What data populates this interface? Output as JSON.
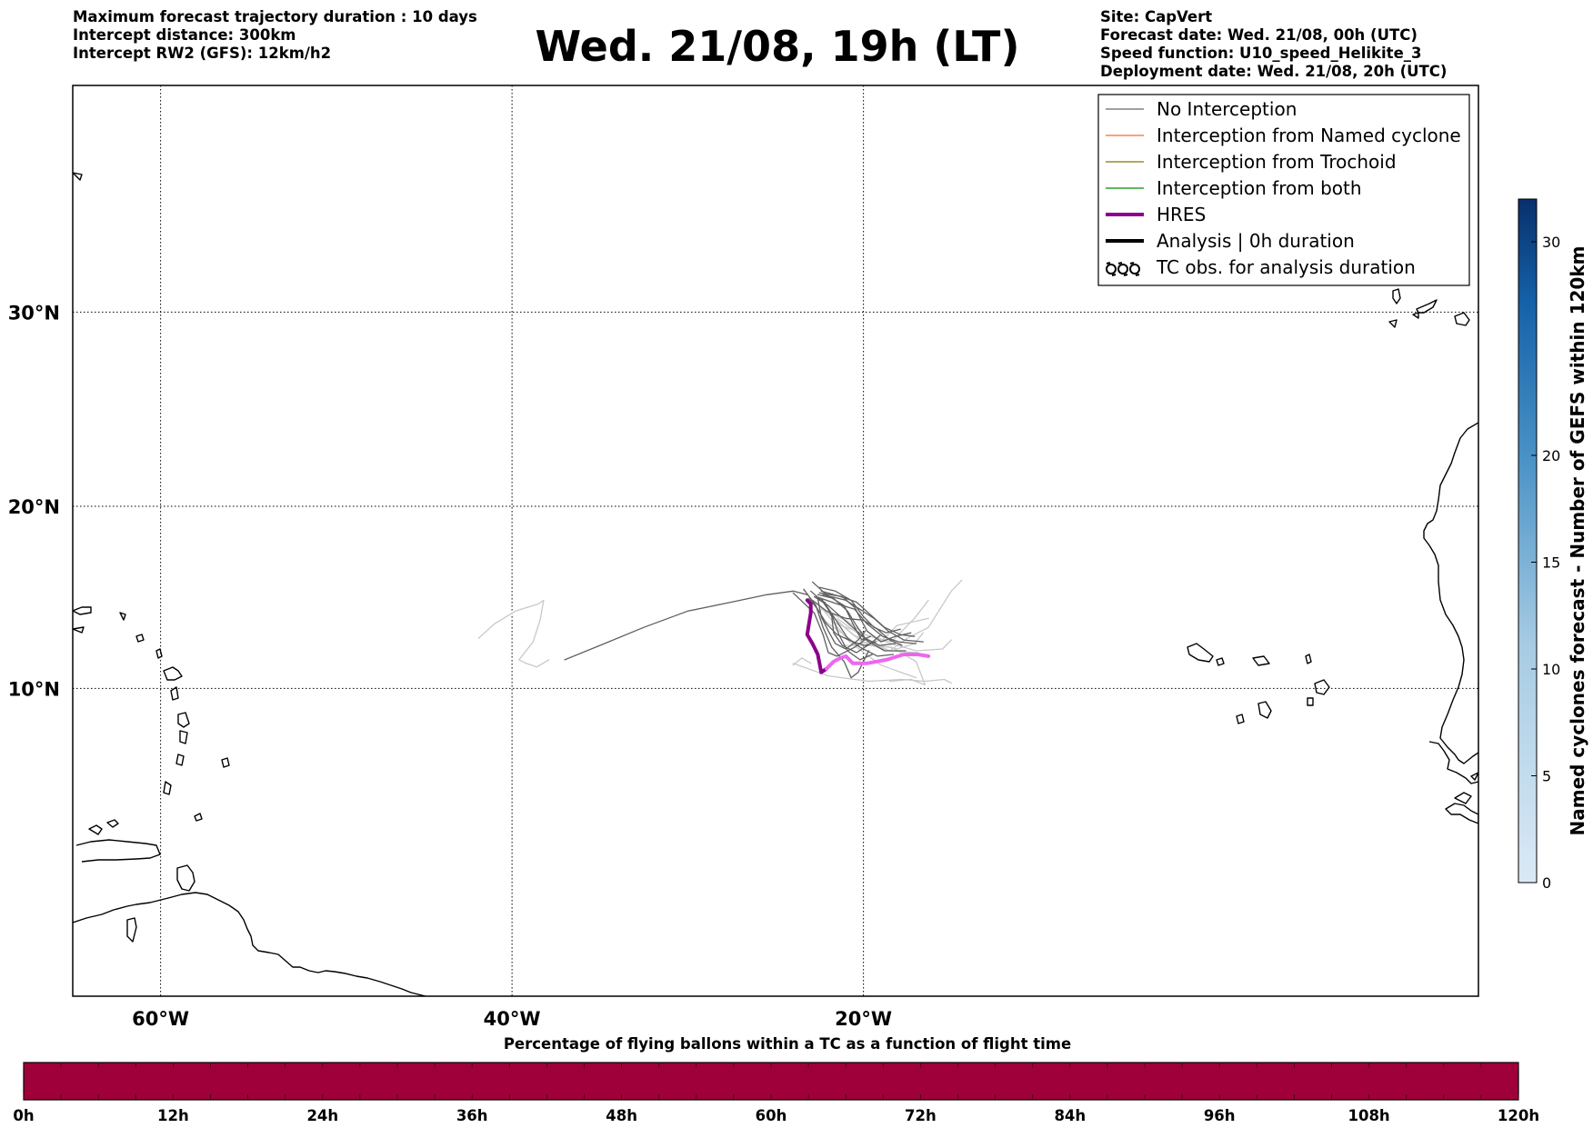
{
  "header": {
    "left_lines": [
      "Maximum forecast trajectory duration : 10 days",
      "Intercept distance: 300km",
      "Intercept RW2 (GFS):  12km/h2"
    ],
    "title": "Wed. 21/08, 19h (LT)",
    "right_lines": [
      "Site: CapVert",
      "Forecast date: Wed. 21/08, 00h (UTC)",
      "Speed function: U10_speed_Helikite_3",
      "Deployment date: Wed. 21/08, 20h (UTC)"
    ]
  },
  "map": {
    "lon_range": [
      -65,
      15
    ],
    "lat_range": [
      5.5,
      35
    ],
    "lon_ticks": [
      {
        "lon": -60,
        "label": "60°W"
      },
      {
        "lon": -40,
        "label": "40°W"
      },
      {
        "lon": -20,
        "label": "20°W"
      }
    ],
    "lat_ticks": [
      {
        "lat": 10,
        "label": "10°N"
      },
      {
        "lat": 20,
        "label": "20°N"
      },
      {
        "lat": 30,
        "label": "30°N"
      }
    ],
    "grid": true,
    "grid_style": "dotted"
  },
  "legend": {
    "placement": "top-right",
    "entries": [
      {
        "label": "No Interception",
        "color": "#808080",
        "style": "thin"
      },
      {
        "label": "Interception from Named cyclone",
        "color": "#ff7f50",
        "style": "thin"
      },
      {
        "label": "Interception from Trochoid",
        "color": "#9a8a30",
        "style": "thin"
      },
      {
        "label": "Interception from both",
        "color": "#2ca02c",
        "style": "thin"
      },
      {
        "label": "HRES",
        "color": "#8b008b",
        "style": "thick"
      },
      {
        "label": "Analysis | 0h duration",
        "color": "#000000",
        "style": "thick"
      },
      {
        "label": "TC obs. for analysis duration",
        "color": "#000000",
        "style": "cyclone-symbols"
      }
    ]
  },
  "trajectories": {
    "hres": {
      "color_early": "#8b008b",
      "color_late": "#ee66ee",
      "points": [
        [
          -23.2,
          14.9
        ],
        [
          -23.0,
          14.7
        ],
        [
          -23.0,
          14.2
        ],
        [
          -23.1,
          13.6
        ],
        [
          -23.2,
          13.0
        ],
        [
          -22.9,
          12.5
        ],
        [
          -22.6,
          11.9
        ],
        [
          -22.5,
          11.4
        ],
        [
          -22.4,
          10.9
        ],
        [
          -22.1,
          11.1
        ],
        [
          -21.7,
          11.5
        ],
        [
          -21.3,
          11.7
        ],
        [
          -21.0,
          11.8
        ],
        [
          -20.6,
          11.4
        ],
        [
          -19.8,
          11.4
        ],
        [
          -18.7,
          11.6
        ],
        [
          -17.7,
          11.9
        ],
        [
          -16.9,
          11.9
        ],
        [
          -16.3,
          11.8
        ]
      ]
    },
    "lines": [
      {
        "color": "#5f5f5f",
        "points": [
          [
            -37.0,
            11.6
          ],
          [
            -35.0,
            12.4
          ],
          [
            -32.5,
            13.4
          ],
          [
            -30.0,
            14.3
          ],
          [
            -27.5,
            14.8
          ],
          [
            -25.5,
            15.2
          ],
          [
            -24.0,
            15.4
          ],
          [
            -23.2,
            15.2
          ]
        ]
      },
      {
        "color": "#c8c8c8",
        "points": [
          [
            -41.9,
            12.8
          ],
          [
            -41.0,
            13.6
          ],
          [
            -39.8,
            14.3
          ],
          [
            -38.5,
            14.7
          ],
          [
            -38.2,
            14.9
          ],
          [
            -38.4,
            13.8
          ],
          [
            -38.8,
            12.6
          ],
          [
            -39.6,
            11.6
          ],
          [
            -39.2,
            11.4
          ],
          [
            -38.6,
            11.2
          ],
          [
            -37.9,
            11.6
          ]
        ]
      },
      {
        "color": "#c8c8c8",
        "points": [
          [
            -24.0,
            11.3
          ],
          [
            -23.5,
            11.7
          ],
          [
            -23.0,
            11.4
          ]
        ]
      },
      {
        "color": "#c8c8c8",
        "points": [
          [
            -22.4,
            14.5
          ],
          [
            -20.6,
            13.0
          ],
          [
            -18.5,
            12.1
          ],
          [
            -16.9,
            12.0
          ]
        ]
      },
      {
        "color": "#c8c8c8",
        "points": [
          [
            -22.4,
            14.5
          ],
          [
            -20.8,
            12.6
          ],
          [
            -19.0,
            11.3
          ],
          [
            -17.0,
            10.6
          ]
        ]
      },
      {
        "color": "#c8c8c8",
        "points": [
          [
            -22.4,
            13.9
          ],
          [
            -20.4,
            12.5
          ],
          [
            -18.9,
            12.7
          ],
          [
            -18.1,
            13.5
          ],
          [
            -16.3,
            13.9
          ]
        ]
      },
      {
        "color": "#c8c8c8",
        "points": [
          [
            -22.4,
            14.4
          ],
          [
            -21.0,
            13.8
          ],
          [
            -19.9,
            13.0
          ],
          [
            -18.4,
            12.6
          ],
          [
            -17.1,
            13.9
          ],
          [
            -16.3,
            14.9
          ]
        ]
      },
      {
        "color": "#c8c8c8",
        "points": [
          [
            -22.0,
            14.2
          ],
          [
            -20.1,
            12.6
          ],
          [
            -18.5,
            12.1
          ],
          [
            -17.5,
            12.8
          ],
          [
            -16.3,
            13.4
          ],
          [
            -15.0,
            15.4
          ],
          [
            -14.4,
            16.0
          ]
        ]
      },
      {
        "color": "#c8c8c8",
        "points": [
          [
            -21.8,
            13.7
          ],
          [
            -19.6,
            12.9
          ],
          [
            -18.4,
            12.5
          ],
          [
            -17.0,
            12.1
          ],
          [
            -15.5,
            12.2
          ],
          [
            -15.0,
            12.7
          ]
        ]
      },
      {
        "color": "#c8c8c8",
        "points": [
          [
            -21.5,
            13.9
          ],
          [
            -19.5,
            12.5
          ],
          [
            -18.1,
            12.2
          ],
          [
            -17.1,
            12.5
          ],
          [
            -16.6,
            13.1
          ]
        ]
      },
      {
        "color": "#c8c8c8",
        "points": [
          [
            -24.0,
            11.4
          ],
          [
            -22.0,
            10.7
          ],
          [
            -19.7,
            10.4
          ],
          [
            -17.8,
            10.5
          ],
          [
            -16.5,
            10.4
          ],
          [
            -15.4,
            10.5
          ],
          [
            -15.0,
            10.3
          ]
        ]
      },
      {
        "color": "#c8c8c8",
        "points": [
          [
            -21.2,
            12.4
          ],
          [
            -19.8,
            12.4
          ],
          [
            -18.4,
            12.3
          ],
          [
            -17.0,
            11.5
          ],
          [
            -16.5,
            10.2
          ],
          [
            -17.3,
            10.5
          ],
          [
            -18.5,
            10.4
          ]
        ]
      },
      {
        "color": "#5f5f5f",
        "points": [
          [
            -24.0,
            15.3
          ],
          [
            -22.8,
            14.2
          ],
          [
            -22.3,
            13.0
          ],
          [
            -22.0,
            12.0
          ],
          [
            -21.5,
            11.8
          ],
          [
            -20.5,
            12.3
          ],
          [
            -19.8,
            12.8
          ]
        ]
      },
      {
        "color": "#5f5f5f",
        "points": [
          [
            -23.4,
            15.5
          ],
          [
            -22.7,
            14.6
          ],
          [
            -22.3,
            13.4
          ],
          [
            -21.8,
            12.3
          ],
          [
            -21.1,
            11.5
          ],
          [
            -20.7,
            10.6
          ],
          [
            -20.3,
            10.9
          ],
          [
            -19.7,
            12.1
          ]
        ]
      },
      {
        "color": "#5f5f5f",
        "points": [
          [
            -22.9,
            15.9
          ],
          [
            -22.1,
            15.2
          ],
          [
            -21.1,
            14.6
          ],
          [
            -20.5,
            13.4
          ],
          [
            -20.1,
            12.7
          ],
          [
            -19.6,
            12.9
          ]
        ]
      },
      {
        "color": "#5f5f5f",
        "points": [
          [
            -22.7,
            15.1
          ],
          [
            -21.5,
            14.7
          ],
          [
            -20.5,
            14.4
          ],
          [
            -19.8,
            13.6
          ],
          [
            -18.9,
            12.9
          ],
          [
            -18.0,
            12.6
          ],
          [
            -17.0,
            12.5
          ]
        ]
      },
      {
        "color": "#5f5f5f",
        "points": [
          [
            -22.5,
            15.3
          ],
          [
            -21.2,
            15.1
          ],
          [
            -20.5,
            14.5
          ],
          [
            -19.8,
            13.2
          ],
          [
            -19.0,
            12.6
          ],
          [
            -18.2,
            12.9
          ],
          [
            -17.3,
            13.1
          ]
        ]
      },
      {
        "color": "#5f5f5f",
        "points": [
          [
            -22.4,
            15.0
          ],
          [
            -21.9,
            14.3
          ],
          [
            -21.3,
            13.4
          ],
          [
            -20.9,
            12.8
          ],
          [
            -20.2,
            12.3
          ],
          [
            -19.2,
            11.8
          ],
          [
            -18.3,
            11.9
          ]
        ]
      },
      {
        "color": "#5f5f5f",
        "points": [
          [
            -22.3,
            15.2
          ],
          [
            -21.0,
            14.9
          ],
          [
            -20.2,
            14.4
          ],
          [
            -19.4,
            13.9
          ],
          [
            -18.6,
            13.2
          ],
          [
            -17.7,
            12.7
          ],
          [
            -16.6,
            12.6
          ]
        ]
      },
      {
        "color": "#5f5f5f",
        "points": [
          [
            -22.6,
            15.0
          ],
          [
            -22.4,
            14.0
          ],
          [
            -22.0,
            13.2
          ],
          [
            -21.6,
            12.5
          ],
          [
            -21.0,
            12.2
          ],
          [
            -20.3,
            12.7
          ],
          [
            -19.9,
            13.2
          ]
        ]
      },
      {
        "color": "#5f5f5f",
        "points": [
          [
            -23.0,
            15.4
          ],
          [
            -22.3,
            14.8
          ],
          [
            -21.8,
            14.1
          ],
          [
            -21.4,
            13.0
          ],
          [
            -20.9,
            12.1
          ],
          [
            -20.2,
            11.6
          ],
          [
            -19.5,
            11.9
          ]
        ]
      },
      {
        "color": "#5f5f5f",
        "points": [
          [
            -22.5,
            15.6
          ],
          [
            -21.6,
            15.4
          ],
          [
            -20.7,
            14.9
          ],
          [
            -20.0,
            14.0
          ],
          [
            -19.4,
            13.4
          ],
          [
            -18.7,
            13.1
          ],
          [
            -17.9,
            13.3
          ]
        ]
      },
      {
        "color": "#5f5f5f",
        "points": [
          [
            -22.2,
            14.8
          ],
          [
            -21.8,
            14.0
          ],
          [
            -21.7,
            13.1
          ],
          [
            -21.2,
            12.4
          ],
          [
            -20.4,
            12.0
          ],
          [
            -19.6,
            12.5
          ],
          [
            -19.0,
            13.0
          ]
        ]
      },
      {
        "color": "#5f5f5f",
        "points": [
          [
            -22.9,
            14.9
          ],
          [
            -22.1,
            14.3
          ],
          [
            -21.0,
            13.9
          ],
          [
            -20.0,
            13.8
          ],
          [
            -19.2,
            13.3
          ],
          [
            -18.5,
            12.7
          ],
          [
            -17.8,
            12.4
          ]
        ]
      },
      {
        "color": "#5f5f5f",
        "points": [
          [
            -22.6,
            15.2
          ],
          [
            -21.7,
            15.0
          ],
          [
            -20.9,
            14.3
          ],
          [
            -20.4,
            13.5
          ],
          [
            -19.9,
            12.8
          ],
          [
            -19.1,
            12.4
          ],
          [
            -18.2,
            12.5
          ]
        ]
      },
      {
        "color": "#5f5f5f",
        "points": [
          [
            -22.8,
            15.1
          ],
          [
            -22.0,
            14.6
          ],
          [
            -21.3,
            14.0
          ],
          [
            -20.5,
            13.3
          ],
          [
            -19.7,
            12.6
          ],
          [
            -18.8,
            12.1
          ],
          [
            -17.6,
            12.1
          ]
        ]
      },
      {
        "color": "#5f5f5f",
        "points": [
          [
            -22.4,
            15.4
          ],
          [
            -21.3,
            15.1
          ],
          [
            -20.4,
            14.8
          ],
          [
            -19.6,
            14.1
          ],
          [
            -18.8,
            13.4
          ],
          [
            -17.9,
            13.0
          ],
          [
            -17.1,
            12.9
          ]
        ]
      },
      {
        "color": "#5f5f5f",
        "points": [
          [
            -23.1,
            15.0
          ],
          [
            -22.6,
            14.4
          ],
          [
            -22.1,
            13.6
          ],
          [
            -21.5,
            13.0
          ],
          [
            -20.6,
            12.6
          ],
          [
            -19.9,
            12.4
          ],
          [
            -19.3,
            12.6
          ]
        ]
      }
    ]
  },
  "colorbar_right": {
    "label": "Named cyclones forecast - Number of GEFS within 120km",
    "vmin": 0,
    "vmax": 32,
    "ticks": [
      0,
      5,
      10,
      15,
      20,
      30
    ],
    "tick_labels": [
      "0",
      "5",
      "10",
      "15",
      "20",
      "30"
    ],
    "color_low": "#dbe9f6",
    "color_high": "#08306b"
  },
  "colorbar_bottom": {
    "title": "Percentage of flying ballons within a TC as a function of flight time",
    "fill_color": "#a0003a",
    "tick_hours": [
      0,
      12,
      24,
      36,
      48,
      60,
      72,
      84,
      96,
      108,
      120
    ],
    "tick_labels": [
      "0h",
      "12h",
      "24h",
      "36h",
      "48h",
      "60h",
      "72h",
      "84h",
      "96h",
      "108h",
      "120h"
    ]
  }
}
